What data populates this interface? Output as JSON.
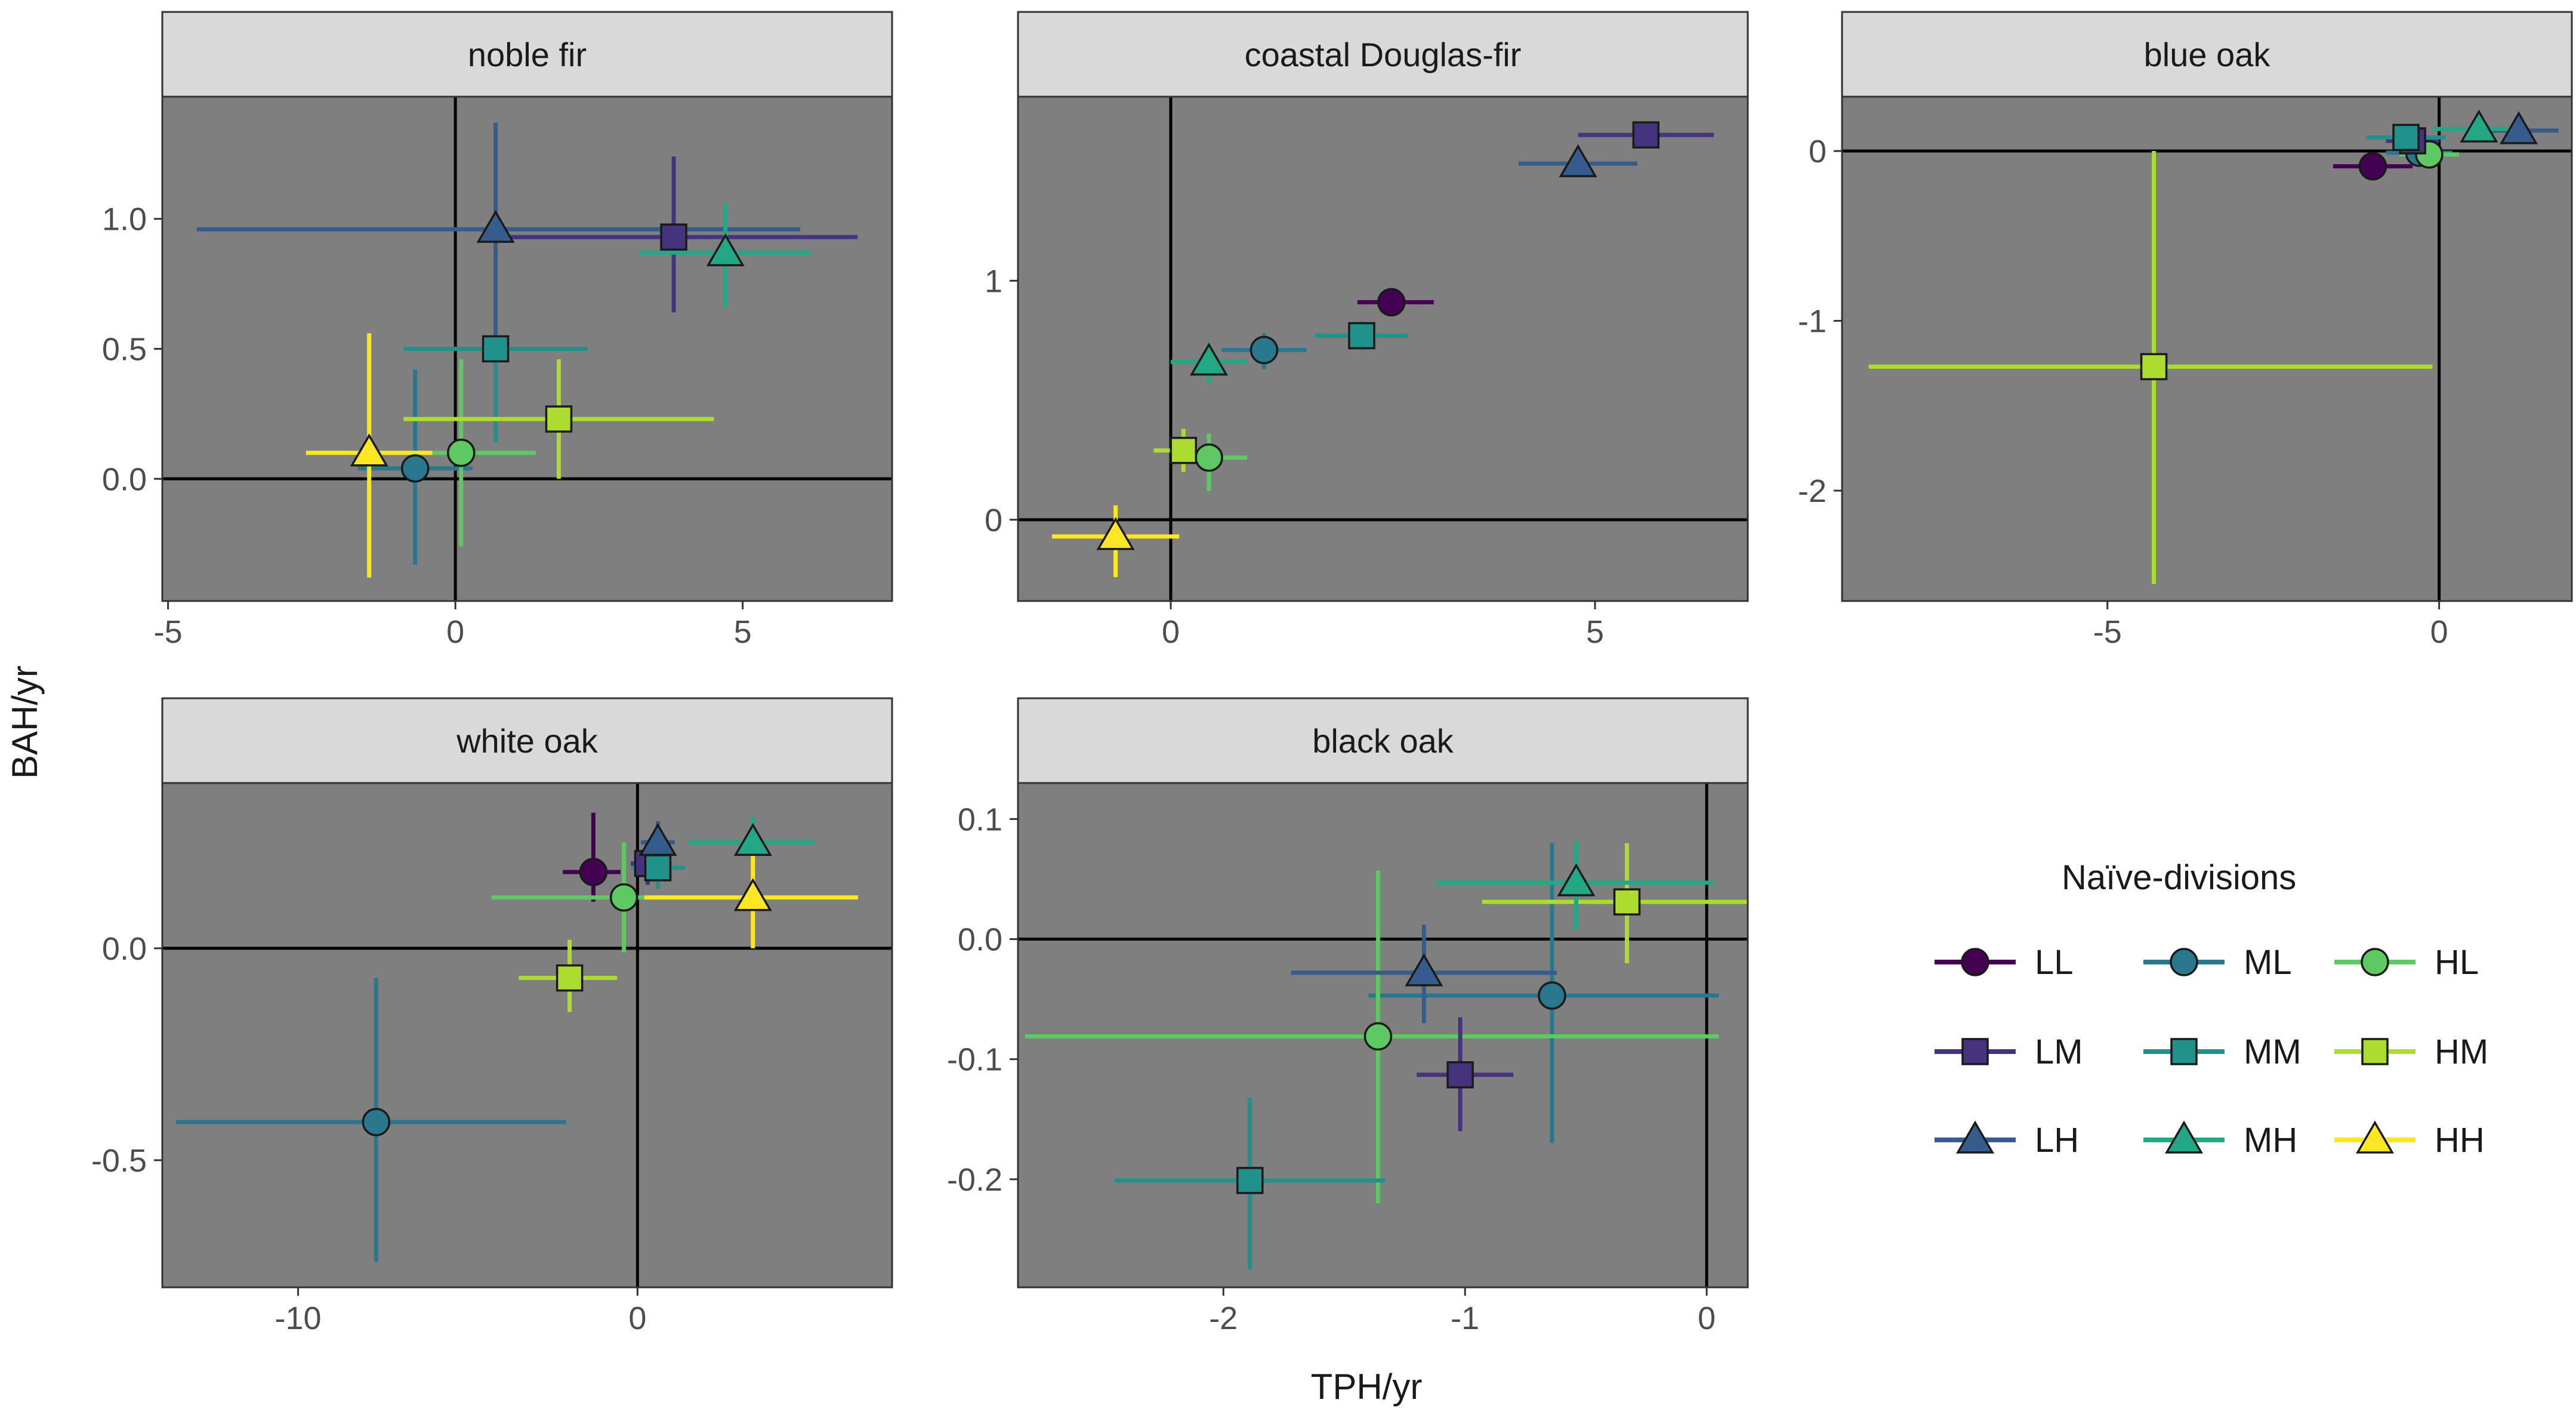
{
  "chart_data": {
    "type": "scatter",
    "xlabel": "TPH/yr",
    "ylabel": "BAH/yr",
    "background": "#ffffff",
    "panel_background": "#7f7f7f",
    "strip_background": "#d9d9d9",
    "legend": {
      "title": "Naïve-divisions",
      "placement": "right",
      "entries": [
        "LL",
        "ML",
        "HL",
        "LM",
        "MM",
        "HM",
        "LH",
        "MH",
        "HH"
      ]
    },
    "groups": {
      "LL": {
        "color": "#440154",
        "shape": "circle"
      },
      "ML": {
        "color": "#2a788e",
        "shape": "circle"
      },
      "HL": {
        "color": "#5ec962",
        "shape": "circle"
      },
      "LM": {
        "color": "#46337e",
        "shape": "square"
      },
      "MM": {
        "color": "#21918c",
        "shape": "square"
      },
      "HM": {
        "color": "#addc30",
        "shape": "square"
      },
      "LH": {
        "color": "#365c8d",
        "shape": "triangle"
      },
      "MH": {
        "color": "#22a884",
        "shape": "triangle"
      },
      "HH": {
        "color": "#fde725",
        "shape": "triangle"
      }
    },
    "panels": [
      {
        "title": "noble fir",
        "xlim": [
          -5.1,
          7.6
        ],
        "ylim": [
          -0.47,
          1.47
        ],
        "xticks": [
          -5,
          0,
          5
        ],
        "xtick_labels": [
          "-5",
          "0",
          "5"
        ],
        "yticks": [
          0.0,
          0.5,
          1.0
        ],
        "ytick_labels": [
          "0.0",
          "0.5",
          "1.0"
        ],
        "points": [
          {
            "group": "ML",
            "x": -0.7,
            "y": 0.04,
            "xmin": -1.7,
            "xmax": 0.3,
            "ymin": -0.33,
            "ymax": 0.42
          },
          {
            "group": "HL",
            "x": 0.1,
            "y": 0.1,
            "xmin": -1.3,
            "xmax": 1.4,
            "ymin": -0.26,
            "ymax": 0.46
          },
          {
            "group": "LM",
            "x": 3.8,
            "y": 0.93,
            "xmin": 0.9,
            "xmax": 7.0,
            "ymin": 0.64,
            "ymax": 1.24
          },
          {
            "group": "MM",
            "x": 0.7,
            "y": 0.5,
            "xmin": -0.9,
            "xmax": 2.3,
            "ymin": 0.14,
            "ymax": 0.85
          },
          {
            "group": "HM",
            "x": 1.8,
            "y": 0.23,
            "xmin": -0.9,
            "xmax": 4.5,
            "ymin": 0.0,
            "ymax": 0.46
          },
          {
            "group": "LH",
            "x": 0.7,
            "y": 0.96,
            "xmin": -4.5,
            "xmax": 6.0,
            "ymin": 0.55,
            "ymax": 1.37
          },
          {
            "group": "MH",
            "x": 4.7,
            "y": 0.87,
            "xmin": 3.2,
            "xmax": 6.2,
            "ymin": 0.66,
            "ymax": 1.06
          },
          {
            "group": "HH",
            "x": -1.5,
            "y": 0.1,
            "xmin": -2.6,
            "xmax": -0.4,
            "ymin": -0.38,
            "ymax": 0.56
          }
        ]
      },
      {
        "title": "coastal Douglas-fir",
        "xlim": [
          -1.8,
          6.8
        ],
        "ylim": [
          -0.34,
          1.77
        ],
        "xticks": [
          0,
          5
        ],
        "xtick_labels": [
          "0",
          "5"
        ],
        "yticks": [
          0,
          1
        ],
        "ytick_labels": [
          "0",
          "1"
        ],
        "points": [
          {
            "group": "LL",
            "x": 2.6,
            "y": 0.91,
            "xmin": 2.2,
            "xmax": 3.1,
            "ymin": 0.87,
            "ymax": 0.95
          },
          {
            "group": "ML",
            "x": 1.1,
            "y": 0.71,
            "xmin": 0.6,
            "xmax": 1.6,
            "ymin": 0.63,
            "ymax": 0.78
          },
          {
            "group": "HL",
            "x": 0.45,
            "y": 0.26,
            "xmin": 0.0,
            "xmax": 0.9,
            "ymin": 0.12,
            "ymax": 0.36
          },
          {
            "group": "LM",
            "x": 5.6,
            "y": 1.61,
            "xmin": 4.8,
            "xmax": 6.4,
            "ymin": 1.57,
            "ymax": 1.65
          },
          {
            "group": "MM",
            "x": 2.25,
            "y": 0.77,
            "xmin": 1.7,
            "xmax": 2.8,
            "ymin": 0.71,
            "ymax": 0.83
          },
          {
            "group": "HM",
            "x": 0.15,
            "y": 0.29,
            "xmin": -0.2,
            "xmax": 0.5,
            "ymin": 0.2,
            "ymax": 0.38
          },
          {
            "group": "LH",
            "x": 4.8,
            "y": 1.49,
            "xmin": 4.1,
            "xmax": 5.5,
            "ymin": 1.45,
            "ymax": 1.53
          },
          {
            "group": "MH",
            "x": 0.45,
            "y": 0.66,
            "xmin": 0.0,
            "xmax": 0.9,
            "ymin": 0.57,
            "ymax": 0.74
          },
          {
            "group": "HH",
            "x": -0.65,
            "y": -0.07,
            "xmin": -1.4,
            "xmax": 0.1,
            "ymin": -0.24,
            "ymax": 0.06
          }
        ]
      },
      {
        "title": "blue oak",
        "xlim": [
          -9.0,
          2.0
        ],
        "ylim": [
          -2.65,
          0.32
        ],
        "xticks": [
          -5,
          0
        ],
        "xtick_labels": [
          "-5",
          "0"
        ],
        "yticks": [
          -2,
          -1,
          0
        ],
        "ytick_labels": [
          "-2",
          "-1",
          "0"
        ],
        "points": [
          {
            "group": "LL",
            "x": -1.0,
            "y": -0.09,
            "xmin": -1.6,
            "xmax": -0.4,
            "ymin": -0.15,
            "ymax": -0.03
          },
          {
            "group": "ML",
            "x": -0.3,
            "y": -0.01,
            "xmin": -0.8,
            "xmax": 0.2,
            "ymin": -0.08,
            "ymax": 0.06
          },
          {
            "group": "HL",
            "x": -0.15,
            "y": -0.02,
            "xmin": -0.6,
            "xmax": 0.3,
            "ymin": -0.09,
            "ymax": 0.05
          },
          {
            "group": "LM",
            "x": -0.4,
            "y": 0.06,
            "xmin": -0.8,
            "xmax": 0.0,
            "ymin": 0.0,
            "ymax": 0.12
          },
          {
            "group": "MM",
            "x": -0.5,
            "y": 0.08,
            "xmin": -1.1,
            "xmax": 0.1,
            "ymin": 0.02,
            "ymax": 0.14
          },
          {
            "group": "HM",
            "x": -4.3,
            "y": -1.27,
            "xmin": -8.6,
            "xmax": -0.1,
            "ymin": -2.55,
            "ymax": 0.0
          },
          {
            "group": "LH",
            "x": 1.2,
            "y": 0.12,
            "xmin": 0.6,
            "xmax": 1.8,
            "ymin": 0.08,
            "ymax": 0.16
          },
          {
            "group": "MH",
            "x": 0.6,
            "y": 0.13,
            "xmin": -0.1,
            "xmax": 1.3,
            "ymin": 0.09,
            "ymax": 0.17
          }
        ]
      },
      {
        "title": "white oak",
        "xlim": [
          -14.0,
          7.5
        ],
        "ylim": [
          -0.8,
          0.39
        ],
        "xticks": [
          -10,
          0
        ],
        "xtick_labels": [
          "-10",
          "0"
        ],
        "yticks": [
          -0.5,
          0.0
        ],
        "ytick_labels": [
          "-0.5",
          "0.0"
        ],
        "points": [
          {
            "group": "LL",
            "x": -1.3,
            "y": 0.18,
            "xmin": -2.2,
            "xmax": -0.5,
            "ymin": 0.11,
            "ymax": 0.32
          },
          {
            "group": "ML",
            "x": -7.7,
            "y": -0.41,
            "xmin": -13.6,
            "xmax": -2.1,
            "ymin": -0.74,
            "ymax": -0.07
          },
          {
            "group": "HL",
            "x": -0.4,
            "y": 0.12,
            "xmin": -4.3,
            "xmax": 3.4,
            "ymin": -0.01,
            "ymax": 0.25
          },
          {
            "group": "LM",
            "x": 0.3,
            "y": 0.2,
            "xmin": -0.2,
            "xmax": 0.8,
            "ymin": 0.15,
            "ymax": 0.25
          },
          {
            "group": "MM",
            "x": 0.6,
            "y": 0.19,
            "xmin": -0.2,
            "xmax": 1.4,
            "ymin": 0.14,
            "ymax": 0.24
          },
          {
            "group": "HM",
            "x": -2.0,
            "y": -0.07,
            "xmin": -3.5,
            "xmax": -0.6,
            "ymin": -0.15,
            "ymax": 0.02
          },
          {
            "group": "LH",
            "x": 0.6,
            "y": 0.25,
            "xmin": 0.1,
            "xmax": 1.1,
            "ymin": 0.2,
            "ymax": 0.3
          },
          {
            "group": "MH",
            "x": 3.4,
            "y": 0.25,
            "xmin": 1.5,
            "xmax": 5.2,
            "ymin": 0.2,
            "ymax": 0.31
          },
          {
            "group": "HH",
            "x": 3.4,
            "y": 0.12,
            "xmin": 0.2,
            "xmax": 6.5,
            "ymin": 0.0,
            "ymax": 0.24
          }
        ]
      },
      {
        "title": "black oak",
        "xlim": [
          -2.85,
          0.17
        ],
        "ylim": [
          -0.29,
          0.13
        ],
        "xticks": [
          -2,
          -1,
          0
        ],
        "xtick_labels": [
          "-2",
          "-1",
          "0"
        ],
        "yticks": [
          -0.2,
          -0.1,
          0.0,
          0.1
        ],
        "ytick_labels": [
          "-0.2",
          "-0.1",
          "0.0",
          "0.1"
        ],
        "points": [
          {
            "group": "ML",
            "x": -0.64,
            "y": -0.047,
            "xmin": -1.4,
            "xmax": 0.05,
            "ymin": -0.17,
            "ymax": 0.08
          },
          {
            "group": "HL",
            "x": -1.36,
            "y": -0.081,
            "xmin": -2.82,
            "xmax": 0.05,
            "ymin": -0.22,
            "ymax": 0.057
          },
          {
            "group": "LM",
            "x": -1.02,
            "y": -0.113,
            "xmin": -1.2,
            "xmax": -0.8,
            "ymin": -0.16,
            "ymax": -0.065
          },
          {
            "group": "MM",
            "x": -1.89,
            "y": -0.201,
            "xmin": -2.45,
            "xmax": -1.33,
            "ymin": -0.275,
            "ymax": -0.132
          },
          {
            "group": "HM",
            "x": -0.33,
            "y": 0.031,
            "xmin": -0.93,
            "xmax": 0.26,
            "ymin": -0.02,
            "ymax": 0.08
          },
          {
            "group": "LH",
            "x": -1.17,
            "y": -0.028,
            "xmin": -1.72,
            "xmax": -0.62,
            "ymin": -0.07,
            "ymax": 0.012
          },
          {
            "group": "MH",
            "x": -0.54,
            "y": 0.047,
            "xmin": -1.12,
            "xmax": 0.03,
            "ymin": 0.008,
            "ymax": 0.082
          }
        ]
      }
    ]
  }
}
